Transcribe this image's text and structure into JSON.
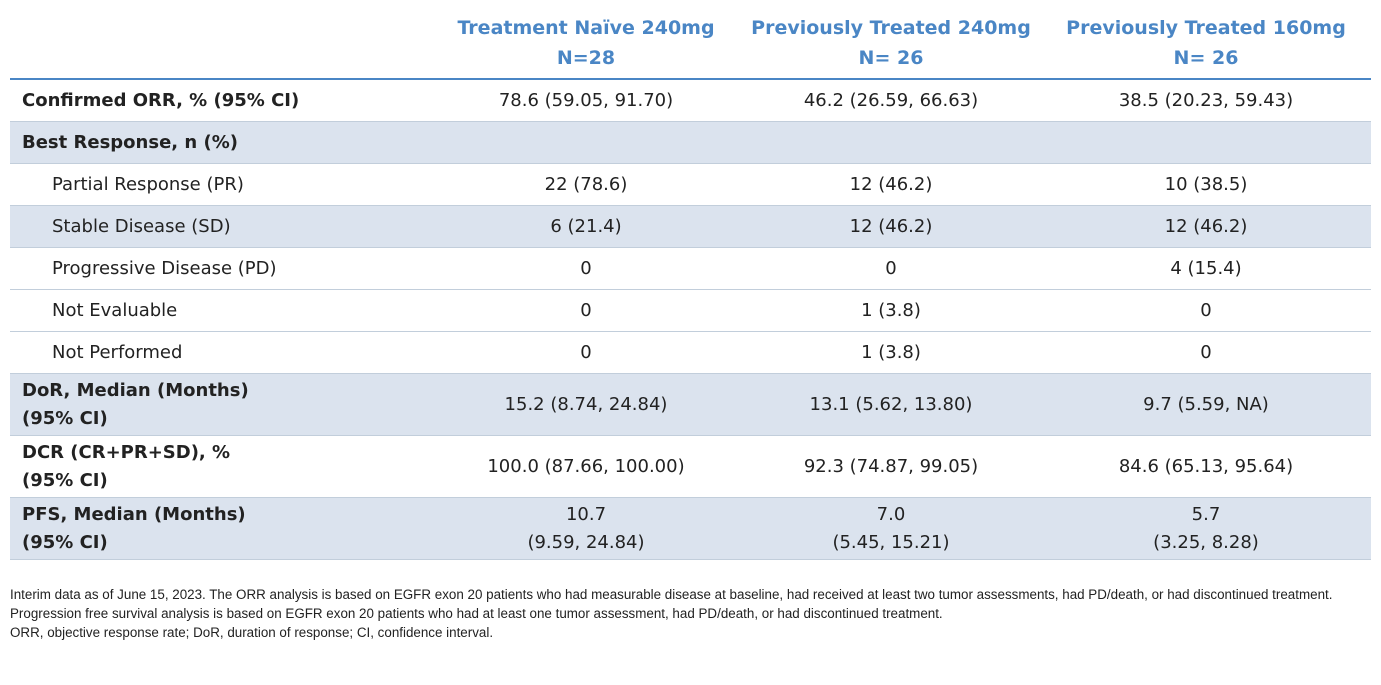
{
  "table": {
    "headers": [
      {
        "line1": "",
        "line2": ""
      },
      {
        "line1": "Treatment Naïve 240mg",
        "line2": "N=28"
      },
      {
        "line1": "Previously Treated 240mg",
        "line2": "N= 26"
      },
      {
        "line1": "Previously Treated 160mg",
        "line2": "N= 26"
      }
    ],
    "rows": [
      {
        "label": "Confirmed ORR, % (95% CI)",
        "values": [
          "78.6 (59.05, 91.70)",
          "46.2 (26.59, 66.63)",
          "38.5 (20.23, 59.43)"
        ]
      },
      {
        "label": "Best Response, n (%)",
        "values": [
          "",
          "",
          ""
        ]
      },
      {
        "label": "Partial Response (PR)",
        "values": [
          "22 (78.6)",
          "12 (46.2)",
          "10 (38.5)"
        ]
      },
      {
        "label": "Stable Disease (SD)",
        "values": [
          "6 (21.4)",
          "12 (46.2)",
          "12 (46.2)"
        ]
      },
      {
        "label": "Progressive Disease (PD)",
        "values": [
          "0",
          "0",
          "4 (15.4)"
        ]
      },
      {
        "label": "Not Evaluable",
        "values": [
          "0",
          "1 (3.8)",
          "0"
        ]
      },
      {
        "label": "Not Performed",
        "values": [
          "0",
          "1 (3.8)",
          "0"
        ]
      },
      {
        "label_line1": "DoR, Median (Months)",
        "label_line2": "(95% CI)",
        "values": [
          "15.2 (8.74, 24.84)",
          "13.1 (5.62, 13.80)",
          "9.7 (5.59, NA)"
        ]
      },
      {
        "label_line1": "DCR (CR+PR+SD), %",
        "label_line2": "(95% CI)",
        "values": [
          "100.0 (87.66, 100.00)",
          "92.3 (74.87, 99.05)",
          "84.6 (65.13, 95.64)"
        ]
      },
      {
        "label_line1": "PFS, Median (Months)",
        "label_line2": "(95% CI)",
        "values_line1": [
          "10.7",
          "7.0",
          "5.7"
        ],
        "values_line2": [
          "(9.59, 24.84)",
          "(5.45, 15.21)",
          "(3.25, 8.28)"
        ]
      }
    ]
  },
  "footnote": {
    "paragraph1": "Interim data as of June 15, 2023. The ORR analysis is based on EGFR exon 20 patients who had measurable disease at baseline, had received at least two tumor assessments, had PD/death, or had discontinued treatment. Progression free survival analysis is based on EGFR exon 20 patients who had at least one tumor assessment, had PD/death, or had discontinued treatment.",
    "paragraph2": "ORR, objective response rate; DoR, duration of response; CI, confidence interval."
  },
  "colors": {
    "header_text": "#4a86c5",
    "shaded_row": "#dbe3ee",
    "rule": "#4a86c5"
  }
}
